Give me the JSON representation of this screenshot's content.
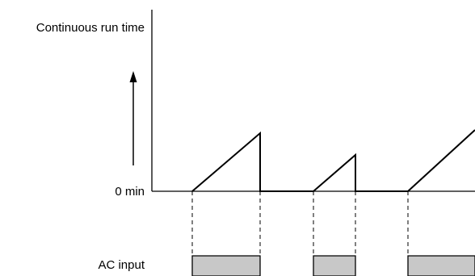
{
  "labels": {
    "y_axis": "Continuous run time",
    "zero": "0 min",
    "ac_input": "AC input"
  },
  "colors": {
    "line": "#000000",
    "pulse_fill": "#c8c8c8",
    "background": "#ffffff"
  }
}
